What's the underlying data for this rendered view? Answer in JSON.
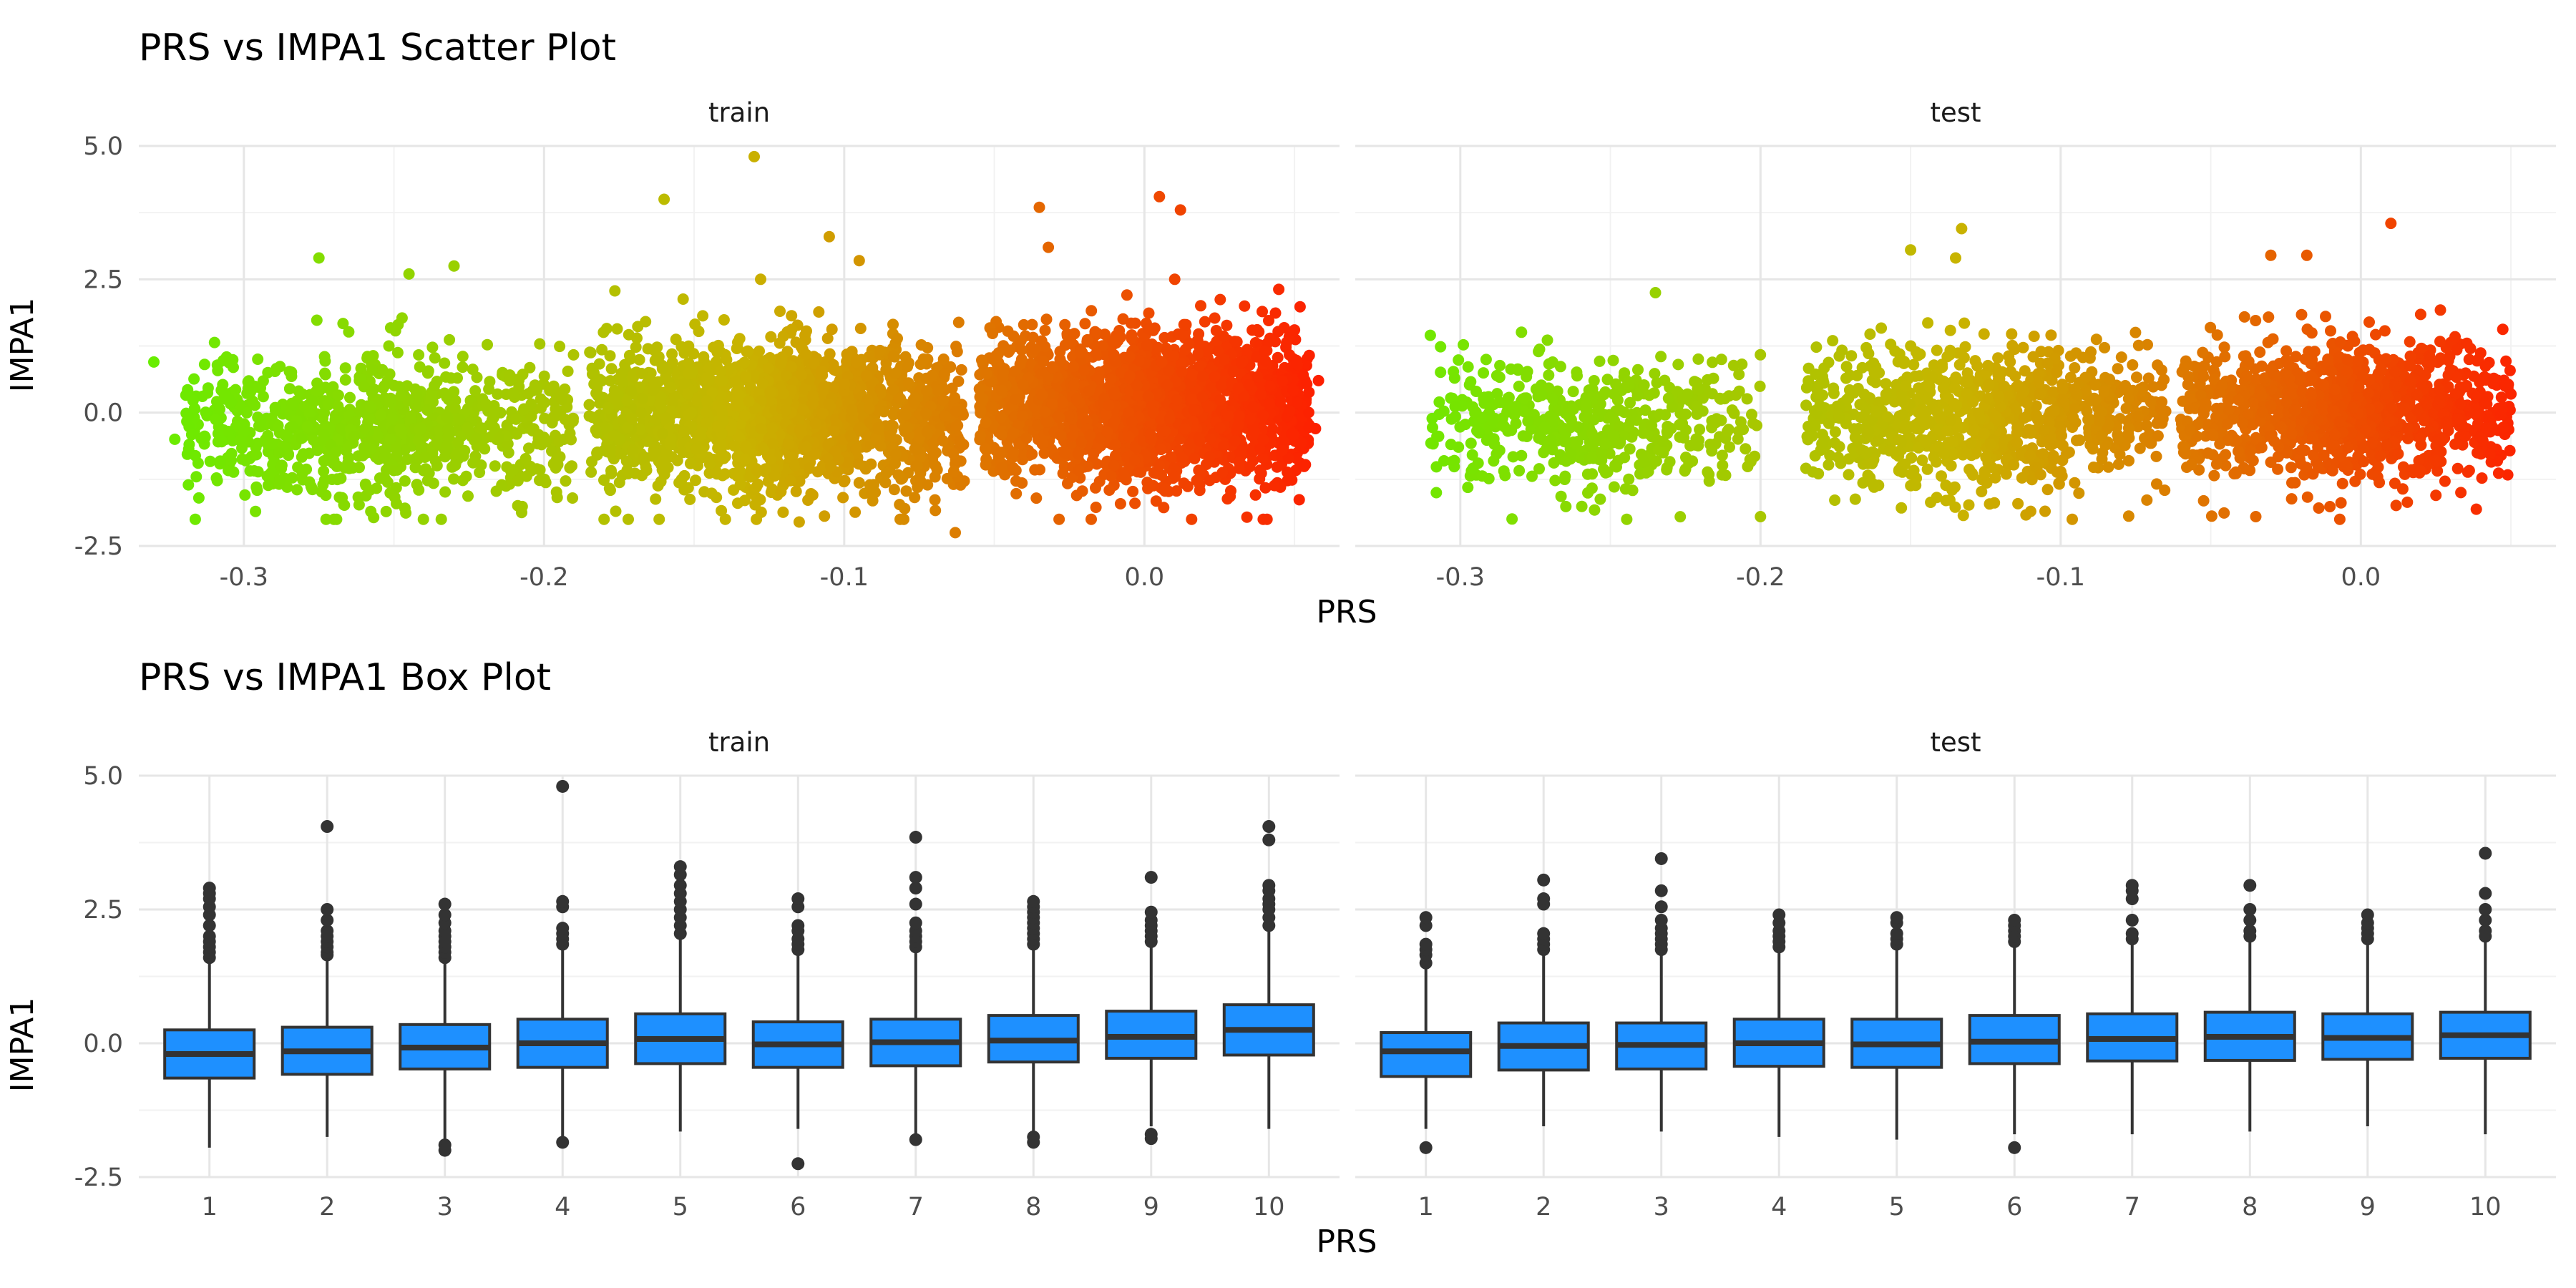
{
  "chart_data": [
    {
      "type": "scatter",
      "title": "PRS vs IMPA1 Scatter Plot",
      "xlabel": "PRS",
      "ylabel": "IMPA1",
      "facets": [
        "train",
        "test"
      ],
      "xlim": [
        -0.335,
        0.065
      ],
      "ylim": [
        -2.5,
        5.0
      ],
      "xticks": [
        -0.3,
        -0.2,
        -0.1,
        0.0
      ],
      "xtick_labels": [
        "-0.3",
        "-0.2",
        "-0.1",
        "0.0"
      ],
      "yticks": [
        -2.5,
        0.0,
        2.5,
        5.0
      ],
      "ytick_labels": [
        "-2.5",
        "0.0",
        "2.5",
        "5.0"
      ],
      "grid": true,
      "color_gradient": {
        "low": "#66ee00",
        "mid": "#c8b400",
        "high": "#ff1a00",
        "mapped_to": "PRS"
      },
      "clusters": {
        "train": [
          {
            "x_min": -0.32,
            "x_max": -0.19,
            "y_mean": -0.25,
            "y_sd": 0.75,
            "n": 900
          },
          {
            "x_min": -0.185,
            "x_max": -0.06,
            "y_mean": -0.05,
            "y_sd": 0.8,
            "n": 1800
          },
          {
            "x_min": -0.055,
            "x_max": 0.055,
            "y_mean": 0.1,
            "y_sd": 0.8,
            "n": 2100
          }
        ],
        "test": [
          {
            "x_min": -0.31,
            "x_max": -0.2,
            "y_mean": -0.25,
            "y_sd": 0.7,
            "n": 500
          },
          {
            "x_min": -0.185,
            "x_max": -0.065,
            "y_mean": -0.05,
            "y_sd": 0.75,
            "n": 900
          },
          {
            "x_min": -0.06,
            "x_max": 0.05,
            "y_mean": 0.05,
            "y_sd": 0.75,
            "n": 1100
          }
        ]
      },
      "highlighted_points": {
        "train": [
          {
            "x": -0.33,
            "y": 0.95
          },
          {
            "x": -0.275,
            "y": 2.9
          },
          {
            "x": -0.245,
            "y": 2.6
          },
          {
            "x": -0.23,
            "y": 2.75
          },
          {
            "x": -0.16,
            "y": 4.0
          },
          {
            "x": -0.13,
            "y": 4.8
          },
          {
            "x": -0.105,
            "y": 3.3
          },
          {
            "x": -0.095,
            "y": 2.85
          },
          {
            "x": -0.035,
            "y": 3.85
          },
          {
            "x": -0.032,
            "y": 3.1
          },
          {
            "x": 0.005,
            "y": 4.05
          },
          {
            "x": 0.012,
            "y": 3.8
          },
          {
            "x": 0.05,
            "y": 1.55
          },
          {
            "x": 0.057,
            "y": -0.3
          },
          {
            "x": -0.063,
            "y": -2.25
          },
          {
            "x": -0.115,
            "y": -2.05
          },
          {
            "x": -0.18,
            "y": -2.0
          },
          {
            "x": -0.27,
            "y": -2.0
          },
          {
            "x": -0.315,
            "y": -1.6
          },
          {
            "x": -0.323,
            "y": -0.5
          },
          {
            "x": 0.058,
            "y": 0.6
          }
        ],
        "test": [
          {
            "x": -0.31,
            "y": 1.45
          },
          {
            "x": -0.308,
            "y": -1.5
          },
          {
            "x": -0.235,
            "y": 2.25
          },
          {
            "x": -0.2,
            "y": -1.95
          },
          {
            "x": -0.15,
            "y": 3.05
          },
          {
            "x": -0.135,
            "y": 2.9
          },
          {
            "x": -0.133,
            "y": 3.45
          },
          {
            "x": -0.03,
            "y": 2.95
          },
          {
            "x": -0.018,
            "y": 2.95
          },
          {
            "x": 0.01,
            "y": 3.55
          },
          {
            "x": 0.048,
            "y": 0.5
          },
          {
            "x": 0.05,
            "y": 0.35
          },
          {
            "x": -0.035,
            "y": -1.95
          },
          {
            "x": 0.025,
            "y": -1.55
          },
          {
            "x": -0.11,
            "y": -1.85
          }
        ]
      }
    },
    {
      "type": "box",
      "title": "PRS vs IMPA1 Box Plot",
      "xlabel": "PRS",
      "ylabel": "IMPA1",
      "facets": [
        "train",
        "test"
      ],
      "categories": [
        "1",
        "2",
        "3",
        "4",
        "5",
        "6",
        "7",
        "8",
        "9",
        "10"
      ],
      "ylim": [
        -2.5,
        5.0
      ],
      "yticks": [
        -2.5,
        0.0,
        2.5,
        5.0
      ],
      "ytick_labels": [
        "-2.5",
        "0.0",
        "2.5",
        "5.0"
      ],
      "grid": true,
      "box_fill": "#1e90ff",
      "box_stroke": "#333333",
      "boxes": {
        "train": [
          {
            "q1": -0.65,
            "median": -0.2,
            "q3": 0.25,
            "low": -1.95,
            "high": 1.55,
            "outliers": [
              1.6,
              1.7,
              1.8,
              1.9,
              2.0,
              2.2,
              2.4,
              2.55,
              2.7,
              2.8,
              2.9
            ]
          },
          {
            "q1": -0.58,
            "median": -0.15,
            "q3": 0.3,
            "low": -1.75,
            "high": 1.6,
            "outliers": [
              1.65,
              1.7,
              1.8,
              1.9,
              2.0,
              2.1,
              2.3,
              2.5,
              4.05
            ]
          },
          {
            "q1": -0.48,
            "median": -0.08,
            "q3": 0.35,
            "low": -1.85,
            "high": 1.55,
            "outliers": [
              1.6,
              1.7,
              1.8,
              1.9,
              2.0,
              2.1,
              2.25,
              2.4,
              2.6,
              -1.9,
              -2.0
            ]
          },
          {
            "q1": -0.45,
            "median": 0.0,
            "q3": 0.45,
            "low": -1.8,
            "high": 1.8,
            "outliers": [
              1.85,
              1.95,
              2.05,
              2.15,
              2.55,
              2.65,
              4.8,
              -1.85
            ]
          },
          {
            "q1": -0.38,
            "median": 0.08,
            "q3": 0.55,
            "low": -1.65,
            "high": 1.95,
            "outliers": [
              2.05,
              2.2,
              2.35,
              2.5,
              2.65,
              2.8,
              2.95,
              3.15,
              3.3
            ]
          },
          {
            "q1": -0.45,
            "median": -0.02,
            "q3": 0.4,
            "low": -1.6,
            "high": 1.7,
            "outliers": [
              1.75,
              1.85,
              1.95,
              2.1,
              2.2,
              2.55,
              2.7,
              -2.25
            ]
          },
          {
            "q1": -0.42,
            "median": 0.02,
            "q3": 0.45,
            "low": -1.75,
            "high": 1.75,
            "outliers": [
              1.8,
              1.9,
              2.0,
              2.1,
              2.25,
              2.6,
              2.9,
              3.1,
              3.85,
              -1.8
            ]
          },
          {
            "q1": -0.35,
            "median": 0.05,
            "q3": 0.52,
            "low": -1.7,
            "high": 1.8,
            "outliers": [
              1.85,
              1.95,
              2.05,
              2.15,
              2.25,
              2.35,
              2.45,
              2.55,
              2.65,
              -1.75,
              -1.85
            ]
          },
          {
            "q1": -0.28,
            "median": 0.12,
            "q3": 0.6,
            "low": -1.55,
            "high": 1.85,
            "outliers": [
              1.9,
              2.0,
              2.1,
              2.2,
              2.3,
              2.45,
              3.1,
              -1.7,
              -1.78
            ]
          },
          {
            "q1": -0.22,
            "median": 0.25,
            "q3": 0.72,
            "low": -1.6,
            "high": 2.1,
            "outliers": [
              2.2,
              2.35,
              2.5,
              2.6,
              2.7,
              2.85,
              2.95,
              3.8,
              4.05
            ]
          }
        ],
        "test": [
          {
            "q1": -0.62,
            "median": -0.15,
            "q3": 0.2,
            "low": -1.6,
            "high": 1.4,
            "outliers": [
              1.5,
              1.65,
              1.75,
              1.85,
              2.2,
              2.35,
              -1.95
            ]
          },
          {
            "q1": -0.5,
            "median": -0.05,
            "q3": 0.38,
            "low": -1.55,
            "high": 1.65,
            "outliers": [
              1.75,
              1.85,
              1.95,
              2.05,
              2.6,
              2.7,
              3.05
            ]
          },
          {
            "q1": -0.48,
            "median": -0.03,
            "q3": 0.38,
            "low": -1.65,
            "high": 1.65,
            "outliers": [
              1.75,
              1.85,
              1.95,
              2.05,
              2.15,
              2.3,
              2.55,
              2.85,
              3.45
            ]
          },
          {
            "q1": -0.43,
            "median": 0.0,
            "q3": 0.45,
            "low": -1.75,
            "high": 1.7,
            "outliers": [
              1.8,
              1.9,
              2.0,
              2.1,
              2.25,
              2.4
            ]
          },
          {
            "q1": -0.45,
            "median": -0.02,
            "q3": 0.45,
            "low": -1.8,
            "high": 1.75,
            "outliers": [
              1.85,
              1.95,
              2.05,
              2.25,
              2.35
            ]
          },
          {
            "q1": -0.38,
            "median": 0.03,
            "q3": 0.52,
            "low": -1.7,
            "high": 1.8,
            "outliers": [
              1.9,
              2.0,
              2.1,
              2.2,
              2.3,
              -1.95
            ]
          },
          {
            "q1": -0.33,
            "median": 0.08,
            "q3": 0.55,
            "low": -1.7,
            "high": 1.85,
            "outliers": [
              1.95,
              2.05,
              2.3,
              2.7,
              2.85,
              2.95
            ]
          },
          {
            "q1": -0.32,
            "median": 0.12,
            "q3": 0.58,
            "low": -1.65,
            "high": 1.9,
            "outliers": [
              2.0,
              2.1,
              2.3,
              2.5,
              2.95
            ]
          },
          {
            "q1": -0.3,
            "median": 0.1,
            "q3": 0.55,
            "low": -1.55,
            "high": 1.85,
            "outliers": [
              1.95,
              2.05,
              2.15,
              2.25,
              2.4
            ]
          },
          {
            "q1": -0.28,
            "median": 0.15,
            "q3": 0.58,
            "low": -1.7,
            "high": 1.9,
            "outliers": [
              2.0,
              2.1,
              2.3,
              2.5,
              2.8,
              3.55
            ]
          }
        ]
      }
    }
  ]
}
